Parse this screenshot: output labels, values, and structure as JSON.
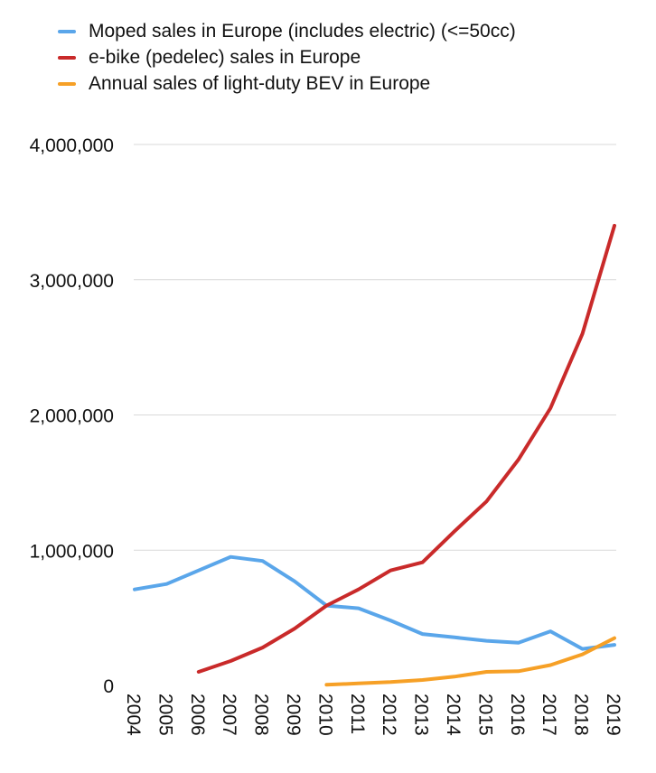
{
  "chart_data": {
    "type": "line",
    "categories": [
      "2004",
      "2005",
      "2006",
      "2007",
      "2008",
      "2009",
      "2010",
      "2011",
      "2012",
      "2013",
      "2014",
      "2015",
      "2016",
      "2017",
      "2018",
      "2019"
    ],
    "ylim": [
      0,
      4000000
    ],
    "yticks": [
      0,
      1000000,
      2000000,
      3000000,
      4000000
    ],
    "ytick_labels": [
      "0",
      "1,000,000",
      "2,000,000",
      "3,000,000",
      "4,000,000"
    ],
    "grid": true,
    "legend_position": "top-left",
    "series": [
      {
        "name": "Moped sales in Europe (includes electric) (<=50cc)",
        "color": "#5aa6ea",
        "values": [
          710000,
          750000,
          850000,
          950000,
          920000,
          770000,
          590000,
          570000,
          480000,
          380000,
          355000,
          330000,
          315000,
          400000,
          270000,
          300000
        ]
      },
      {
        "name": "e-bike (pedelec) sales in Europe",
        "color": "#c92a2a",
        "values": [
          null,
          null,
          100000,
          180000,
          280000,
          420000,
          590000,
          710000,
          850000,
          910000,
          1140000,
          1360000,
          1670000,
          2050000,
          2600000,
          3400000
        ]
      },
      {
        "name": "Annual sales of light-duty BEV in Europe",
        "color": "#f6a026",
        "values": [
          null,
          null,
          null,
          null,
          null,
          null,
          5000,
          15000,
          25000,
          40000,
          65000,
          100000,
          105000,
          150000,
          230000,
          350000
        ]
      }
    ]
  }
}
